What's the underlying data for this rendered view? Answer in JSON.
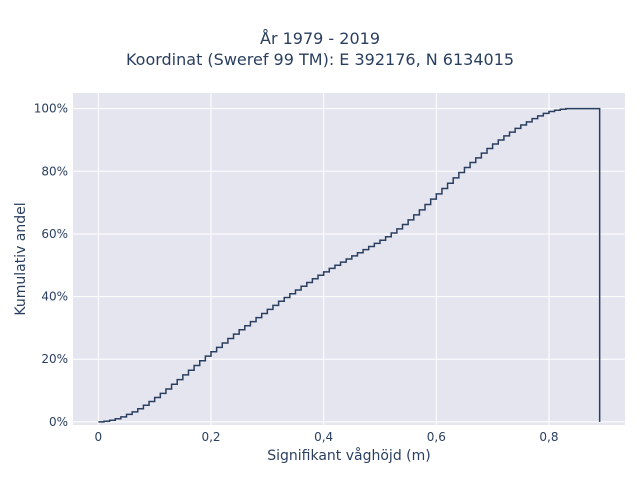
{
  "chart_data": {
    "type": "line",
    "step": true,
    "title_lines": [
      "År 1979 - 2019",
      "Koordinat (Sweref 99 TM): E 392176, N 6134015"
    ],
    "xlabel": "Signifikant våghöjd (m)",
    "ylabel": "Kumulativ andel",
    "xlim": [
      -0.045,
      0.935
    ],
    "ylim": [
      -0.01,
      1.05
    ],
    "x_ticks": [
      0,
      0.2,
      0.4,
      0.6,
      0.8
    ],
    "x_tick_labels": [
      "0",
      "0,2",
      "0,4",
      "0,6",
      "0,8"
    ],
    "y_ticks": [
      0,
      0.2,
      0.4,
      0.6,
      0.8,
      1.0
    ],
    "y_tick_labels": [
      "0%",
      "20%",
      "40%",
      "60%",
      "80%",
      "100%"
    ],
    "grid": true,
    "series": [
      {
        "color": "#2a3f5f",
        "x": [
          0,
          0.01,
          0.02,
          0.03,
          0.04,
          0.05,
          0.06,
          0.07,
          0.08,
          0.09,
          0.1,
          0.11,
          0.12,
          0.13,
          0.14,
          0.15,
          0.16,
          0.17,
          0.18,
          0.19,
          0.2,
          0.21,
          0.22,
          0.23,
          0.24,
          0.25,
          0.26,
          0.27,
          0.28,
          0.29,
          0.3,
          0.31,
          0.32,
          0.33,
          0.34,
          0.35,
          0.36,
          0.37,
          0.38,
          0.39,
          0.4,
          0.41,
          0.42,
          0.43,
          0.44,
          0.45,
          0.46,
          0.47,
          0.48,
          0.49,
          0.5,
          0.51,
          0.52,
          0.53,
          0.54,
          0.55,
          0.56,
          0.57,
          0.58,
          0.59,
          0.6,
          0.61,
          0.62,
          0.63,
          0.64,
          0.65,
          0.66,
          0.67,
          0.68,
          0.69,
          0.7,
          0.71,
          0.72,
          0.73,
          0.74,
          0.75,
          0.76,
          0.77,
          0.78,
          0.79,
          0.8,
          0.81,
          0.82,
          0.83,
          0.84,
          0.85,
          0.86,
          0.87,
          0.88,
          0.89
        ],
        "y": [
          0,
          0.002,
          0.005,
          0.01,
          0.016,
          0.024,
          0.032,
          0.042,
          0.053,
          0.065,
          0.078,
          0.091,
          0.105,
          0.12,
          0.135,
          0.15,
          0.165,
          0.18,
          0.195,
          0.21,
          0.224,
          0.238,
          0.252,
          0.266,
          0.28,
          0.294,
          0.307,
          0.32,
          0.333,
          0.346,
          0.359,
          0.372,
          0.385,
          0.397,
          0.409,
          0.421,
          0.433,
          0.445,
          0.457,
          0.468,
          0.479,
          0.49,
          0.5,
          0.51,
          0.52,
          0.53,
          0.54,
          0.55,
          0.56,
          0.57,
          0.58,
          0.591,
          0.603,
          0.616,
          0.63,
          0.645,
          0.661,
          0.677,
          0.694,
          0.711,
          0.728,
          0.745,
          0.762,
          0.779,
          0.796,
          0.812,
          0.828,
          0.843,
          0.858,
          0.873,
          0.887,
          0.9,
          0.913,
          0.925,
          0.937,
          0.948,
          0.958,
          0.968,
          0.977,
          0.985,
          0.991,
          0.995,
          0.998,
          1.0,
          1.0,
          1.0,
          1.0,
          1.0,
          1.0,
          0.0
        ]
      }
    ]
  }
}
